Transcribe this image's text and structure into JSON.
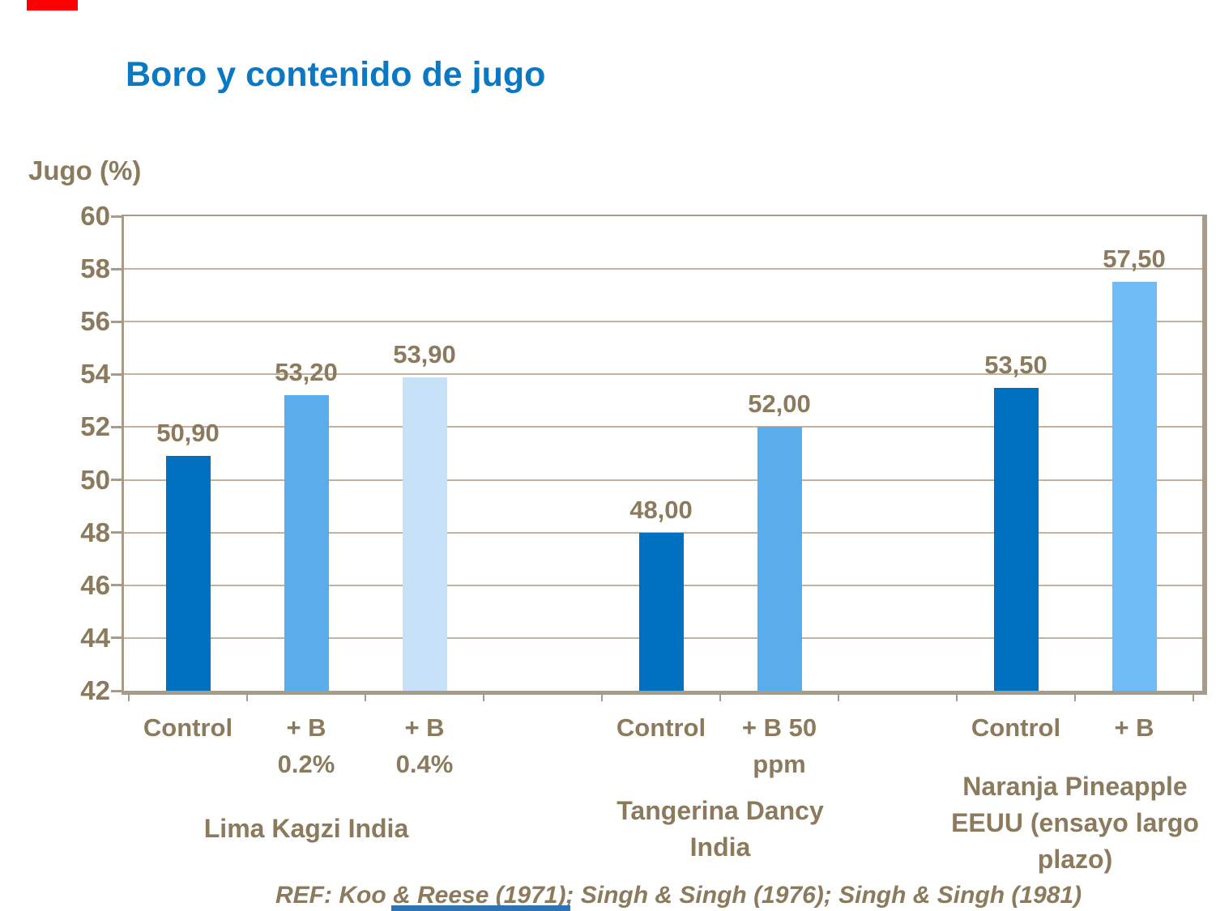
{
  "slide": {
    "title": "Boro y contenido de jugo",
    "title_color": "#0B78C4",
    "text_color": "#8B7A5C",
    "accent_red_color": "#FF0000",
    "accent_blue_color": "#2E74B5",
    "footer": "REF: Koo & Reese (1971); Singh & Singh (1976); Singh & Singh (1981)"
  },
  "chart_data": {
    "type": "bar",
    "title": "Boro y contenido de jugo",
    "xlabel": "",
    "ylabel": "Jugo (%)",
    "ylim": [
      42,
      60
    ],
    "ytick_step": 2,
    "grid": true,
    "legend": false,
    "decimal_style": "comma",
    "slots_total": 9,
    "colors": {
      "control": "#0070C0",
      "boron_medium": "#58ADEA",
      "boron_pale": "#C6E1F8",
      "boron_bright": "#6FBCF6",
      "gridline": "#C0B3A2",
      "axis_border": "#A79B89"
    },
    "bars": [
      {
        "slot": 0,
        "category_lines": [
          "Control"
        ],
        "value": 50.9,
        "label": "50,90",
        "color": "#0070C0",
        "group": "Lima Kagzi India"
      },
      {
        "slot": 1,
        "category_lines": [
          "+ B",
          "0.2%"
        ],
        "value": 53.2,
        "label": "53,20",
        "color": "#58ADEA",
        "group": "Lima Kagzi India"
      },
      {
        "slot": 2,
        "category_lines": [
          "+ B",
          "0.4%"
        ],
        "value": 53.9,
        "label": "53,90",
        "color": "#C6E1F8",
        "group": "Lima Kagzi India"
      },
      {
        "slot": 4,
        "category_lines": [
          "Control"
        ],
        "value": 48.0,
        "label": "48,00",
        "color": "#0070C0",
        "group": "Tangerina Dancy India"
      },
      {
        "slot": 5,
        "category_lines": [
          "+ B 50",
          "ppm"
        ],
        "value": 52.0,
        "label": "52,00",
        "color": "#58ADEA",
        "group": "Tangerina Dancy India"
      },
      {
        "slot": 7,
        "category_lines": [
          "Control"
        ],
        "value": 53.5,
        "label": "53,50",
        "color": "#0070C0",
        "group": "Naranja Pineapple EEUU (ensayo largo plazo)"
      },
      {
        "slot": 8,
        "category_lines": [
          "+ B"
        ],
        "value": 57.5,
        "label": "57,50",
        "color": "#6FBCF6",
        "group": "Naranja Pineapple EEUU (ensayo largo plazo)"
      }
    ],
    "groups": [
      {
        "name_lines": [
          "Lima Kagzi India"
        ],
        "center_slot": 1.5
      },
      {
        "name_lines": [
          "Tangerina Dancy",
          "India"
        ],
        "center_slot": 5.0
      },
      {
        "name_lines": [
          "Naranja Pineapple",
          "EEUU (ensayo largo",
          "plazo)"
        ],
        "center_slot": 8.0
      }
    ]
  }
}
